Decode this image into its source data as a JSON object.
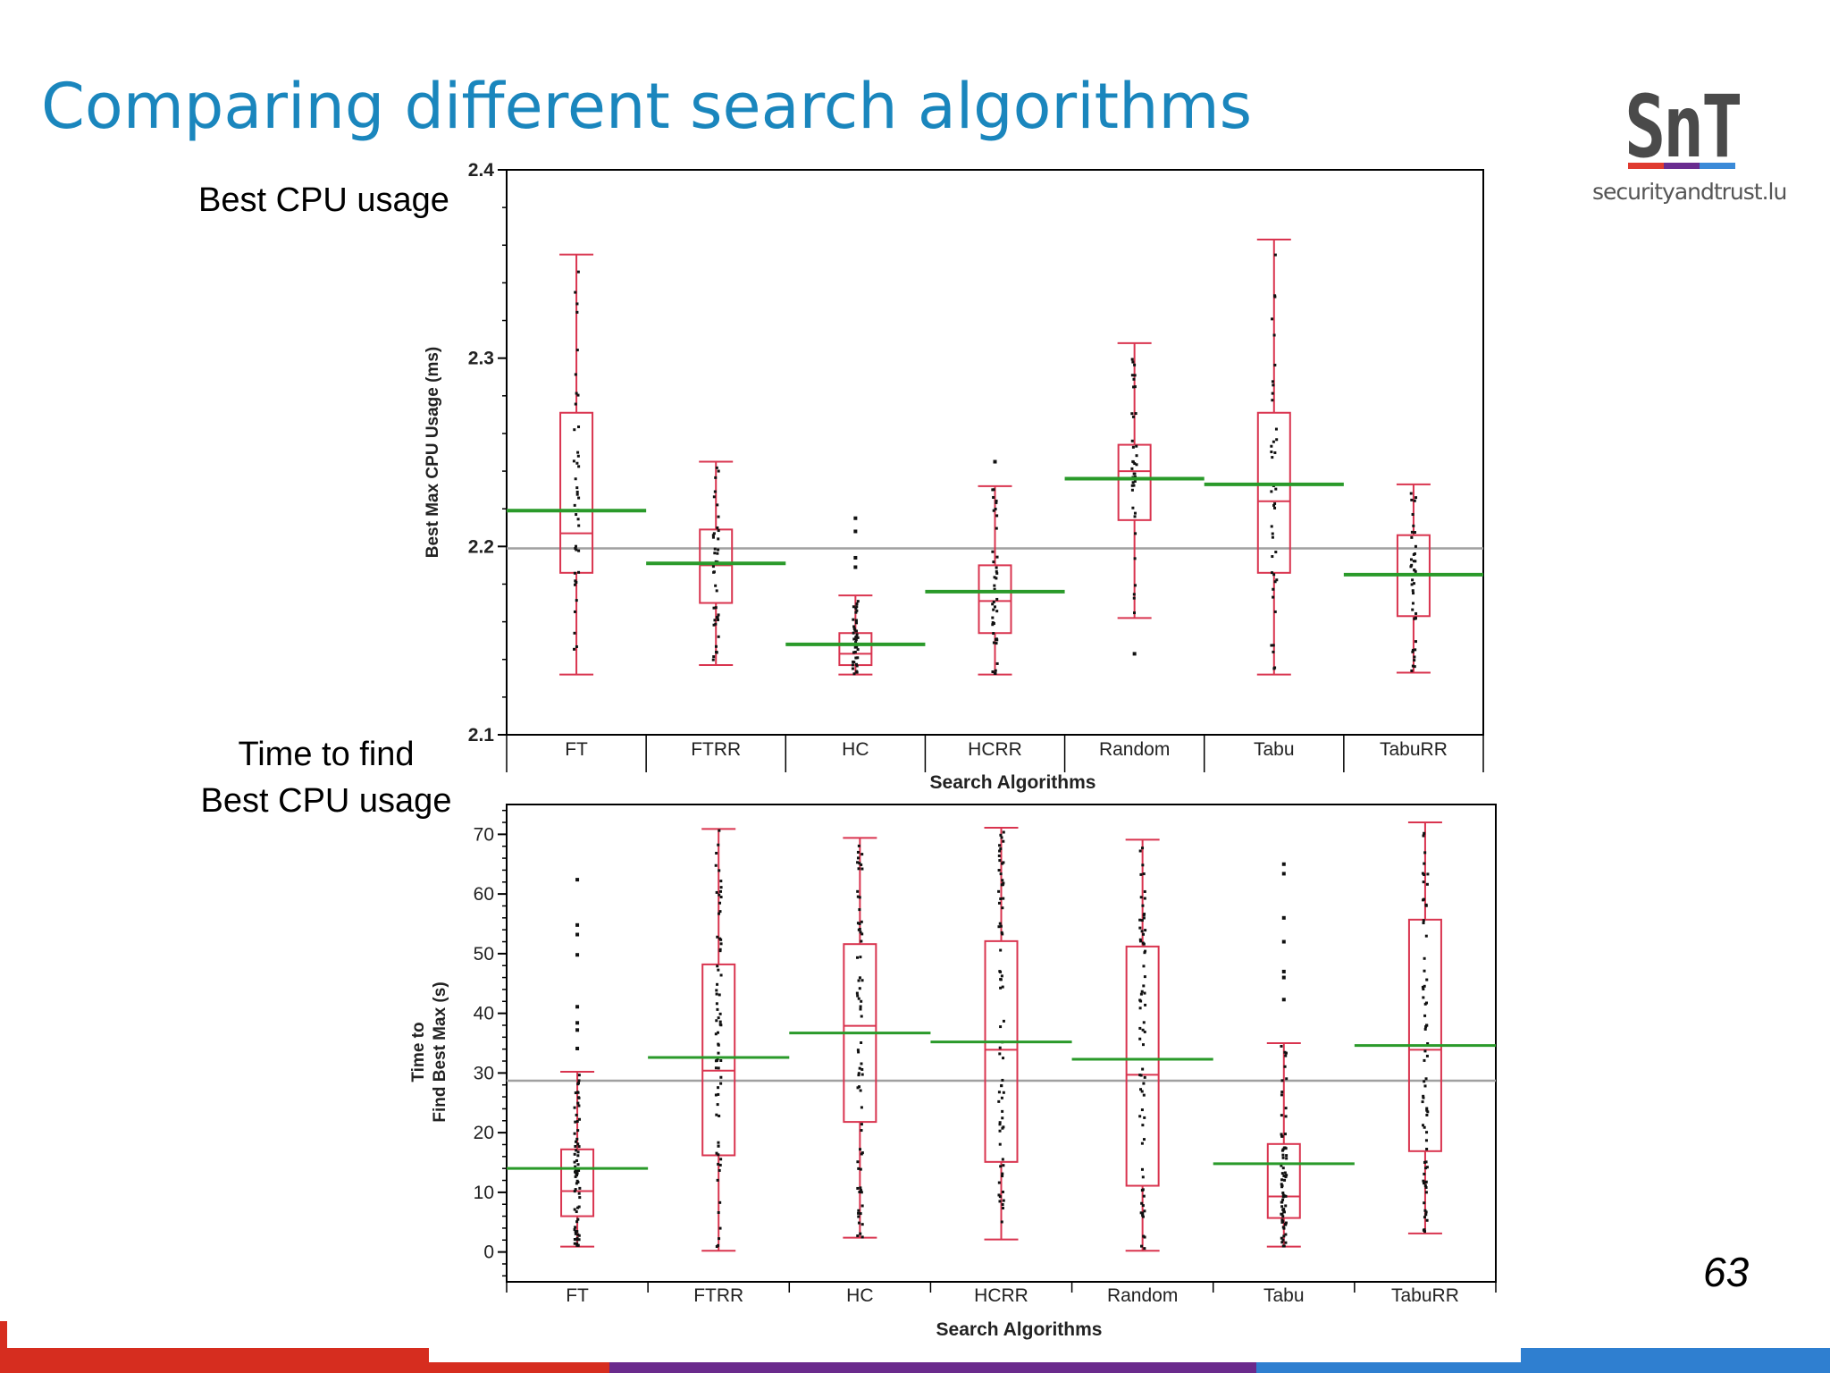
{
  "slide": {
    "title": "Comparing different search algorithms",
    "label_top": "Best CPU usage",
    "label_bottom_line1": "Time to find",
    "label_bottom_line2": "Best CPU usage",
    "page_number": "63"
  },
  "logo": {
    "mark": "SnT",
    "site": "securityandtrust.lu",
    "bar_colors": [
      "#e03a2f",
      "#6a2c8f",
      "#3a8ad8"
    ]
  },
  "footer": {
    "colors": [
      "#d62d1f",
      "#6a2a8c",
      "#2f7fd0"
    ]
  },
  "colors": {
    "box": "#d9344f",
    "mean_line": "#2a9a2a",
    "grand_mean": "#a0a0a0",
    "points": "#111111"
  },
  "chart_data": [
    {
      "type": "box",
      "xlabel": "Search Algorithms",
      "ylabel": "Best Max CPU Usage (ms)",
      "ylim": [
        2.1,
        2.4
      ],
      "yticks": [
        "2.1",
        "2.2",
        "2.3",
        "2.4"
      ],
      "grand_mean": 2.199,
      "categories": [
        "FT",
        "FTRR",
        "HC",
        "HCRR",
        "Random",
        "Tabu",
        "TabuRR"
      ],
      "boxes": [
        {
          "name": "FT",
          "min": 2.132,
          "q1": 2.186,
          "median": 2.207,
          "q3": 2.271,
          "max": 2.355,
          "mean": 2.219
        },
        {
          "name": "FTRR",
          "min": 2.137,
          "q1": 2.17,
          "median": 2.19,
          "q3": 2.209,
          "max": 2.245,
          "mean": 2.191
        },
        {
          "name": "HC",
          "min": 2.132,
          "q1": 2.137,
          "median": 2.143,
          "q3": 2.154,
          "max": 2.174,
          "mean": 2.148
        },
        {
          "name": "HCRR",
          "min": 2.132,
          "q1": 2.154,
          "median": 2.171,
          "q3": 2.19,
          "max": 2.232,
          "mean": 2.176
        },
        {
          "name": "Random",
          "min": 2.162,
          "q1": 2.214,
          "median": 2.24,
          "q3": 2.254,
          "max": 2.308,
          "mean": 2.236
        },
        {
          "name": "Tabu",
          "min": 2.132,
          "q1": 2.186,
          "median": 2.224,
          "q3": 2.271,
          "max": 2.363,
          "mean": 2.233
        },
        {
          "name": "TabuRR",
          "min": 2.133,
          "q1": 2.163,
          "median": 2.185,
          "q3": 2.206,
          "max": 2.233,
          "mean": 2.185
        }
      ],
      "outliers": [
        {
          "name": "FTRR",
          "values": []
        },
        {
          "name": "HC",
          "values": [
            2.215,
            2.208,
            2.194,
            2.189
          ]
        },
        {
          "name": "HCRR",
          "values": [
            2.245
          ]
        },
        {
          "name": "Random",
          "values": [
            2.143
          ]
        }
      ]
    },
    {
      "type": "box",
      "xlabel": "Search Algorithms",
      "ylabel_line1": "Time to",
      "ylabel_line2": "Find Best Max (s)",
      "ylim": [
        -5,
        75
      ],
      "yticks": [
        "0",
        "10",
        "20",
        "30",
        "40",
        "50",
        "60",
        "70"
      ],
      "grand_mean": 28.7,
      "categories": [
        "FT",
        "FTRR",
        "HC",
        "HCRR",
        "Random",
        "Tabu",
        "TabuRR"
      ],
      "boxes": [
        {
          "name": "FT",
          "min": 0.9,
          "q1": 6.0,
          "median": 10.2,
          "q3": 17.2,
          "max": 30.2,
          "mean": 14.0
        },
        {
          "name": "FTRR",
          "min": 0.2,
          "q1": 16.2,
          "median": 30.4,
          "q3": 48.2,
          "max": 70.9,
          "mean": 32.6
        },
        {
          "name": "HC",
          "min": 2.4,
          "q1": 21.8,
          "median": 37.9,
          "q3": 51.6,
          "max": 69.4,
          "mean": 36.7
        },
        {
          "name": "HCRR",
          "min": 2.1,
          "q1": 15.1,
          "median": 33.9,
          "q3": 52.1,
          "max": 71.1,
          "mean": 35.2
        },
        {
          "name": "Random",
          "min": 0.2,
          "q1": 11.1,
          "median": 29.7,
          "q3": 51.2,
          "max": 69.1,
          "mean": 32.3
        },
        {
          "name": "Tabu",
          "min": 0.9,
          "q1": 5.7,
          "median": 9.3,
          "q3": 18.1,
          "max": 35.0,
          "mean": 14.8
        },
        {
          "name": "TabuRR",
          "min": 3.1,
          "q1": 16.9,
          "median": 33.9,
          "q3": 55.7,
          "max": 72.0,
          "mean": 34.6
        }
      ],
      "outliers": [
        {
          "name": "FT",
          "values": [
            62.4,
            54.8,
            53.2,
            49.8,
            41.1,
            38.4,
            37.2,
            34.1
          ]
        },
        {
          "name": "Tabu",
          "values": [
            65.0,
            63.4,
            56.0,
            52.0,
            47.0,
            46.0,
            42.3
          ]
        }
      ]
    }
  ]
}
